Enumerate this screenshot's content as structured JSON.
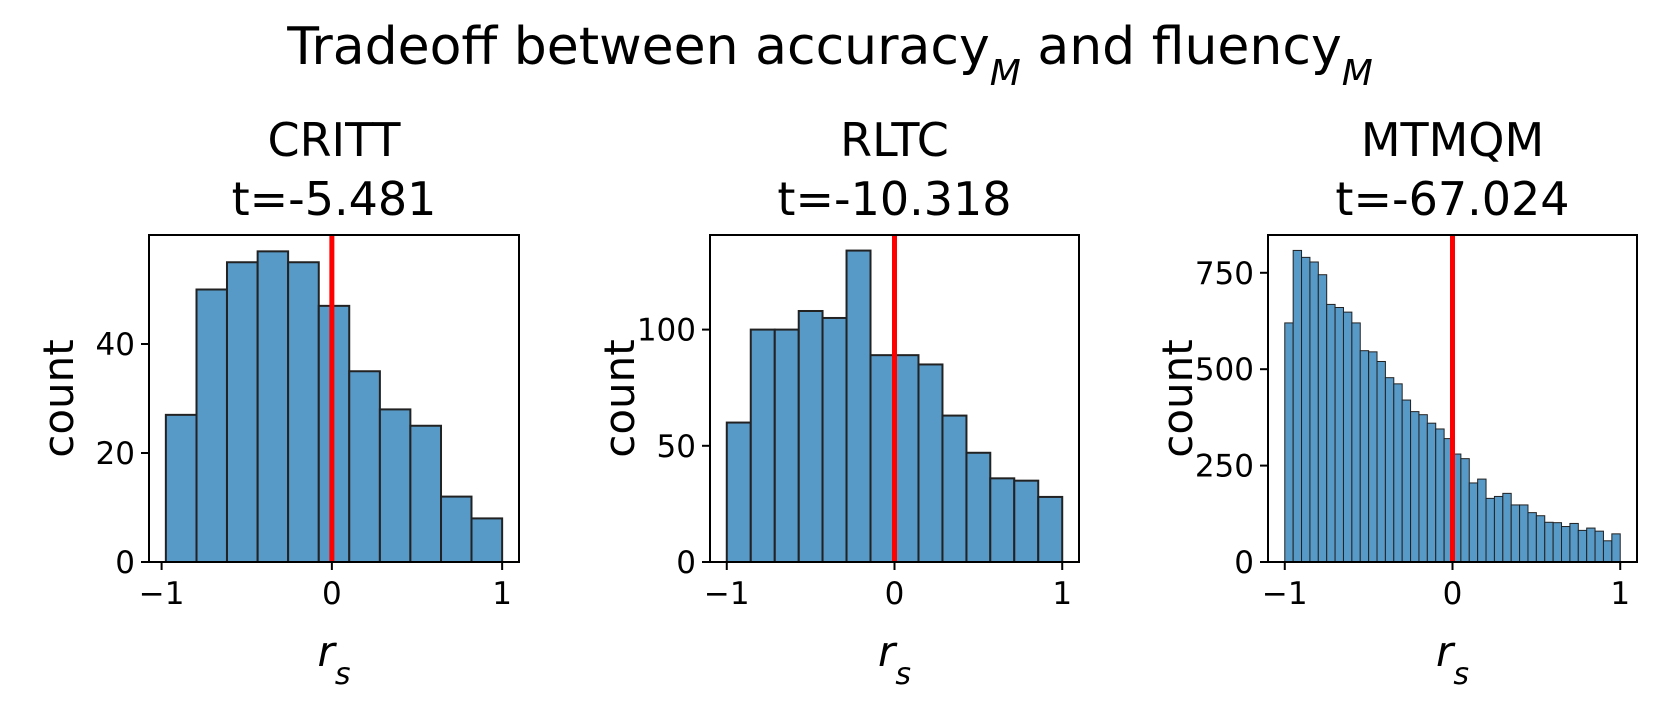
{
  "title": [
    "Tradeoff between accuracy",
    "M",
    " and fluency",
    "M"
  ],
  "chart_data": [
    {
      "type": "histogram",
      "title": "CRITT",
      "subtitle": "t=-5.481",
      "xlabel": [
        "r",
        "s"
      ],
      "ylabel": "count",
      "bins": [
        -0.975,
        -0.795,
        -0.616,
        -0.436,
        -0.257,
        -0.077,
        0.102,
        0.282,
        0.461,
        0.641,
        0.82,
        1.0
      ],
      "values": [
        27,
        50,
        55,
        57,
        55,
        47,
        35,
        28,
        25,
        12,
        8
      ],
      "color": "#5799c7",
      "edgecolor": "#222222",
      "xlim": [
        -1.074,
        1.099
      ],
      "ylim": [
        0,
        60
      ],
      "xticks": [
        {
          "value": -1,
          "label": "−1"
        },
        0,
        1
      ],
      "yticks": [
        0,
        20,
        40
      ],
      "reference_line": {
        "x": 0,
        "color": "#ff0000"
      }
    },
    {
      "type": "histogram",
      "title": "RLTC",
      "subtitle": "t=-10.318",
      "xlabel": [
        "r",
        "s"
      ],
      "ylabel": "count",
      "bins": [
        -1,
        -0.857,
        -0.714,
        -0.571,
        -0.429,
        -0.286,
        -0.143,
        0,
        0.143,
        0.286,
        0.429,
        0.571,
        0.714,
        0.857,
        1
      ],
      "values": [
        60,
        100,
        100,
        108,
        105,
        134,
        89,
        89,
        85,
        63,
        47,
        36,
        35,
        28
      ],
      "color": "#5799c7",
      "edgecolor": "#222222",
      "xlim": [
        -1.1,
        1.1
      ],
      "ylim": [
        0,
        140.7
      ],
      "xticks": [
        {
          "value": -1,
          "label": "−1"
        },
        0,
        1
      ],
      "yticks": [
        0,
        50,
        100
      ],
      "reference_line": {
        "x": 0,
        "color": "#ff0000"
      }
    },
    {
      "type": "histogram",
      "title": "MTMQM",
      "subtitle": "t=-67.024",
      "xlabel": [
        "r",
        "s"
      ],
      "ylabel": "count",
      "bins": [
        -1,
        -0.95,
        -0.9,
        -0.85,
        -0.8,
        -0.75,
        -0.7,
        -0.65,
        -0.6,
        -0.55,
        -0.5,
        -0.45,
        -0.4,
        -0.35,
        -0.3,
        -0.25,
        -0.2,
        -0.15,
        -0.1,
        -0.05,
        0,
        0.05,
        0.1,
        0.15,
        0.2,
        0.25,
        0.3,
        0.35,
        0.4,
        0.45,
        0.5,
        0.55,
        0.6,
        0.65,
        0.7,
        0.75,
        0.8,
        0.85,
        0.9,
        0.95,
        1
      ],
      "values": [
        620,
        808,
        790,
        778,
        745,
        668,
        660,
        648,
        620,
        548,
        545,
        520,
        478,
        462,
        420,
        390,
        382,
        360,
        345,
        320,
        280,
        268,
        205,
        215,
        165,
        170,
        178,
        148,
        148,
        128,
        120,
        103,
        102,
        92,
        100,
        82,
        88,
        80,
        55,
        73
      ],
      "color": "#5799c7",
      "edgecolor": "#222222",
      "xlim": [
        -1.1,
        1.1
      ],
      "ylim": [
        0,
        848
      ],
      "xticks": [
        {
          "value": -1,
          "label": "−1"
        },
        0,
        1
      ],
      "yticks": [
        0,
        250,
        500,
        750
      ],
      "reference_line": {
        "x": 0,
        "color": "#ff0000"
      }
    }
  ]
}
